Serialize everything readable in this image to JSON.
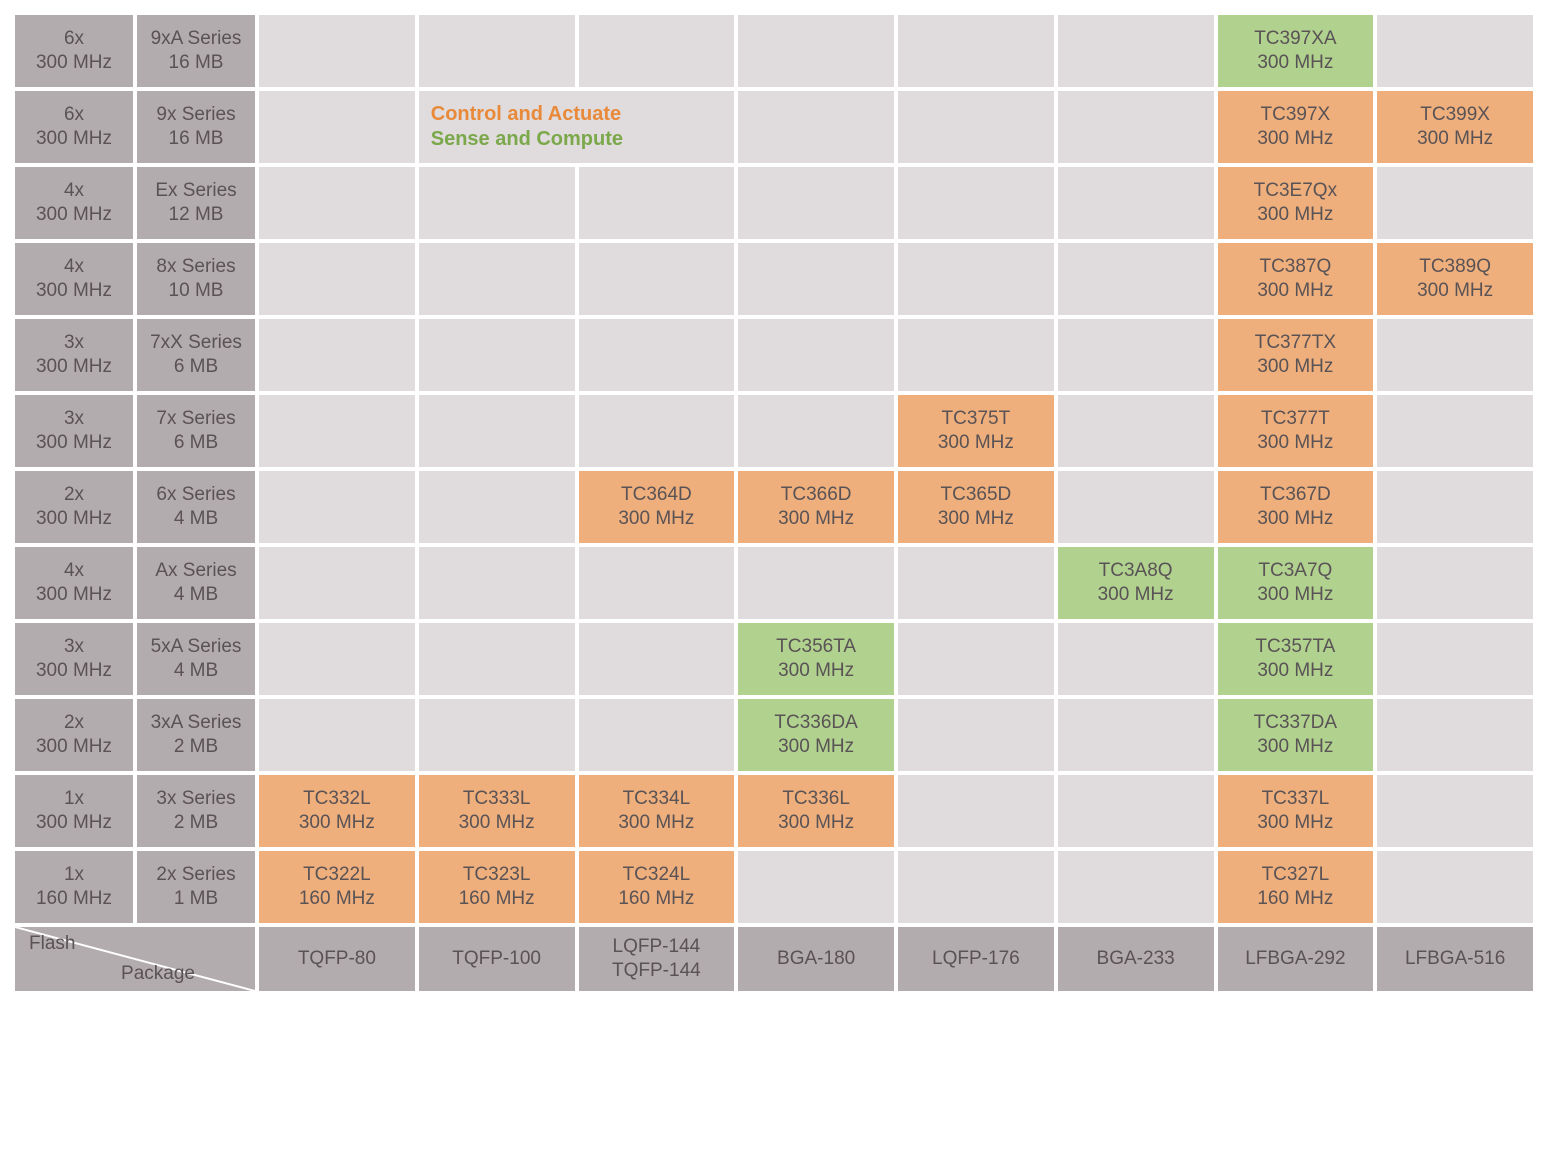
{
  "colors": {
    "header_bg": "#b3acae",
    "empty_bg": "#e0dbdc",
    "orange_bg": "#eeaf7c",
    "green_bg": "#b1d18f",
    "text": "#5a5356",
    "legend_orange": "#e88a3a",
    "legend_green": "#7aa84a"
  },
  "legend": {
    "orange": "Control and Actuate",
    "green": "Sense and Compute"
  },
  "axis": {
    "y_label": "Flash",
    "x_label": "Package"
  },
  "packages": [
    "TQFP-80",
    "TQFP-100",
    "LQFP-144\nTQFP-144",
    "BGA-180",
    "LQFP-176",
    "BGA-233",
    "LFBGA-292",
    "LFBGA-516"
  ],
  "rows": [
    {
      "cores": "6x",
      "freq": "300 MHz",
      "series": "9xA Series",
      "flash": "16 MB",
      "cells": [
        null,
        null,
        null,
        null,
        null,
        null,
        {
          "t": "green",
          "n": "TC397XA",
          "f": "300 MHz"
        },
        null
      ],
      "legend_row": false
    },
    {
      "cores": "6x",
      "freq": "300 MHz",
      "series": "9x Series",
      "flash": "16 MB",
      "cells": [
        null,
        "LEGEND",
        null,
        null,
        null,
        null,
        {
          "t": "orange",
          "n": "TC397X",
          "f": "300 MHz"
        },
        {
          "t": "orange",
          "n": "TC399X",
          "f": "300 MHz"
        }
      ],
      "legend_row": true
    },
    {
      "cores": "4x",
      "freq": "300 MHz",
      "series": "Ex Series",
      "flash": "12 MB",
      "cells": [
        null,
        null,
        null,
        null,
        null,
        null,
        {
          "t": "orange",
          "n": "TC3E7Qx",
          "f": "300 MHz"
        },
        null
      ]
    },
    {
      "cores": "4x",
      "freq": "300 MHz",
      "series": "8x Series",
      "flash": "10 MB",
      "cells": [
        null,
        null,
        null,
        null,
        null,
        null,
        {
          "t": "orange",
          "n": "TC387Q",
          "f": "300 MHz"
        },
        {
          "t": "orange",
          "n": "TC389Q",
          "f": "300 MHz"
        }
      ]
    },
    {
      "cores": "3x",
      "freq": "300 MHz",
      "series": "7xX Series",
      "flash": "6 MB",
      "cells": [
        null,
        null,
        null,
        null,
        null,
        null,
        {
          "t": "orange",
          "n": "TC377TX",
          "f": "300 MHz"
        },
        null
      ]
    },
    {
      "cores": "3x",
      "freq": "300 MHz",
      "series": "7x Series",
      "flash": "6 MB",
      "cells": [
        null,
        null,
        null,
        null,
        {
          "t": "orange",
          "n": "TC375T",
          "f": "300 MHz"
        },
        null,
        {
          "t": "orange",
          "n": "TC377T",
          "f": "300 MHz"
        },
        null
      ]
    },
    {
      "cores": "2x",
      "freq": "300 MHz",
      "series": "6x Series",
      "flash": "4 MB",
      "cells": [
        null,
        null,
        {
          "t": "orange",
          "n": "TC364D",
          "f": "300 MHz"
        },
        {
          "t": "orange",
          "n": "TC366D",
          "f": "300 MHz"
        },
        {
          "t": "orange",
          "n": "TC365D",
          "f": "300 MHz"
        },
        null,
        {
          "t": "orange",
          "n": "TC367D",
          "f": "300 MHz"
        },
        null
      ]
    },
    {
      "cores": "4x",
      "freq": "300 MHz",
      "series": "Ax Series",
      "flash": "4 MB",
      "cells": [
        null,
        null,
        null,
        null,
        null,
        {
          "t": "green",
          "n": "TC3A8Q",
          "f": "300 MHz"
        },
        {
          "t": "green",
          "n": "TC3A7Q",
          "f": "300 MHz"
        },
        null
      ]
    },
    {
      "cores": "3x",
      "freq": "300 MHz",
      "series": "5xA Series",
      "flash": "4 MB",
      "cells": [
        null,
        null,
        null,
        {
          "t": "green",
          "n": "TC356TA",
          "f": "300 MHz"
        },
        null,
        null,
        {
          "t": "green",
          "n": "TC357TA",
          "f": "300 MHz"
        },
        null
      ]
    },
    {
      "cores": "2x",
      "freq": "300 MHz",
      "series": "3xA Series",
      "flash": "2 MB",
      "cells": [
        null,
        null,
        null,
        {
          "t": "green",
          "n": "TC336DA",
          "f": "300 MHz"
        },
        null,
        null,
        {
          "t": "green",
          "n": "TC337DA",
          "f": "300 MHz"
        },
        null
      ]
    },
    {
      "cores": "1x",
      "freq": "300 MHz",
      "series": "3x Series",
      "flash": "2 MB",
      "cells": [
        {
          "t": "orange",
          "n": "TC332L",
          "f": "300 MHz"
        },
        {
          "t": "orange",
          "n": "TC333L",
          "f": "300 MHz"
        },
        {
          "t": "orange",
          "n": "TC334L",
          "f": "300 MHz"
        },
        {
          "t": "orange",
          "n": "TC336L",
          "f": "300 MHz"
        },
        null,
        null,
        {
          "t": "orange",
          "n": "TC337L",
          "f": "300 MHz"
        },
        null
      ]
    },
    {
      "cores": "1x",
      "freq": "160 MHz",
      "series": "2x Series",
      "flash": "1 MB",
      "cells": [
        {
          "t": "orange",
          "n": "TC322L",
          "f": "160 MHz"
        },
        {
          "t": "orange",
          "n": "TC323L",
          "f": "160 MHz"
        },
        {
          "t": "orange",
          "n": "TC324L",
          "f": "160 MHz"
        },
        null,
        null,
        null,
        {
          "t": "orange",
          "n": "TC327L",
          "f": "160 MHz"
        },
        null
      ]
    }
  ]
}
